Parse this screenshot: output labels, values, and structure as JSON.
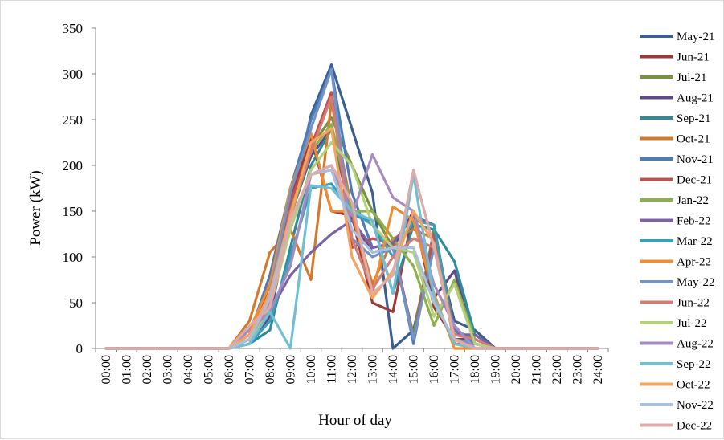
{
  "chart_data": {
    "type": "line",
    "title": "",
    "xlabel": "Hour of day",
    "ylabel": "Power (kW)",
    "ylim": [
      0,
      350
    ],
    "yticks": [
      0,
      50,
      100,
      150,
      200,
      250,
      300,
      350
    ],
    "grid": false,
    "legend_position": "right",
    "categories": [
      "00:00",
      "01:00",
      "02:00",
      "03:00",
      "04:00",
      "05:00",
      "06:00",
      "07:00",
      "08:00",
      "09:00",
      "10:00",
      "11:00",
      "12:00",
      "13:00",
      "14:00",
      "15:00",
      "16:00",
      "17:00",
      "18:00",
      "19:00",
      "20:00",
      "21:00",
      "22:00",
      "23:00",
      "24:00"
    ],
    "series": [
      {
        "name": "May-21",
        "color": "#3b5f91",
        "values": [
          0,
          0,
          0,
          0,
          0,
          0,
          0,
          10,
          45,
          150,
          255,
          310,
          240,
          170,
          0,
          20,
          120,
          30,
          20,
          0,
          0,
          0,
          0,
          0,
          0
        ]
      },
      {
        "name": "Jun-21",
        "color": "#9e3a36",
        "values": [
          0,
          0,
          0,
          0,
          0,
          0,
          0,
          10,
          60,
          165,
          230,
          150,
          145,
          50,
          40,
          150,
          45,
          10,
          10,
          0,
          0,
          0,
          0,
          0,
          0
        ]
      },
      {
        "name": "Jul-21",
        "color": "#769341",
        "values": [
          0,
          0,
          0,
          0,
          0,
          0,
          0,
          5,
          50,
          155,
          220,
          252,
          200,
          150,
          110,
          15,
          130,
          20,
          10,
          0,
          0,
          0,
          0,
          0,
          0
        ]
      },
      {
        "name": "Aug-21",
        "color": "#5f4a83",
        "values": [
          0,
          0,
          0,
          0,
          0,
          0,
          0,
          5,
          35,
          145,
          210,
          240,
          140,
          105,
          110,
          150,
          55,
          85,
          5,
          0,
          0,
          0,
          0,
          0,
          0
        ]
      },
      {
        "name": "Sep-21",
        "color": "#2f8a9e",
        "values": [
          0,
          0,
          0,
          0,
          0,
          0,
          0,
          5,
          20,
          110,
          200,
          240,
          145,
          140,
          60,
          135,
          130,
          95,
          15,
          0,
          0,
          0,
          0,
          0,
          0
        ]
      },
      {
        "name": "Oct-21",
        "color": "#d17a2e",
        "values": [
          0,
          0,
          0,
          0,
          0,
          0,
          0,
          30,
          105,
          130,
          75,
          270,
          150,
          70,
          120,
          130,
          120,
          5,
          5,
          0,
          0,
          0,
          0,
          0,
          0
        ]
      },
      {
        "name": "Nov-21",
        "color": "#4f7bb5",
        "values": [
          0,
          0,
          0,
          0,
          0,
          0,
          0,
          15,
          80,
          175,
          250,
          305,
          170,
          110,
          115,
          5,
          120,
          20,
          5,
          0,
          0,
          0,
          0,
          0,
          0
        ]
      },
      {
        "name": "Dec-21",
        "color": "#c0504d",
        "values": [
          0,
          0,
          0,
          0,
          0,
          0,
          0,
          10,
          70,
          160,
          220,
          280,
          110,
          120,
          115,
          10,
          125,
          10,
          5,
          0,
          0,
          0,
          0,
          0,
          0
        ]
      },
      {
        "name": "Jan-22",
        "color": "#8db04f",
        "values": [
          0,
          0,
          0,
          0,
          0,
          0,
          0,
          5,
          50,
          145,
          215,
          245,
          150,
          150,
          120,
          90,
          25,
          75,
          10,
          0,
          0,
          0,
          0,
          0,
          0
        ]
      },
      {
        "name": "Feb-22",
        "color": "#7c61a3",
        "values": [
          0,
          0,
          0,
          0,
          0,
          0,
          0,
          5,
          40,
          80,
          105,
          125,
          140,
          110,
          115,
          145,
          135,
          15,
          15,
          0,
          0,
          0,
          0,
          0,
          0
        ]
      },
      {
        "name": "Mar-22",
        "color": "#3aa0b8",
        "values": [
          0,
          0,
          0,
          0,
          0,
          0,
          0,
          5,
          30,
          100,
          175,
          180,
          150,
          135,
          100,
          140,
          135,
          10,
          5,
          0,
          0,
          0,
          0,
          0,
          0
        ]
      },
      {
        "name": "Apr-22",
        "color": "#f08c32",
        "values": [
          0,
          0,
          0,
          0,
          0,
          0,
          0,
          20,
          70,
          175,
          235,
          150,
          150,
          60,
          155,
          140,
          60,
          0,
          0,
          0,
          0,
          0,
          0,
          0,
          0
        ]
      },
      {
        "name": "May-22",
        "color": "#7193c8",
        "values": [
          0,
          0,
          0,
          0,
          0,
          0,
          0,
          10,
          60,
          170,
          240,
          305,
          120,
          100,
          110,
          10,
          110,
          10,
          5,
          0,
          0,
          0,
          0,
          0,
          0
        ]
      },
      {
        "name": "Jun-22",
        "color": "#d27c78",
        "values": [
          0,
          0,
          0,
          0,
          0,
          0,
          0,
          5,
          50,
          150,
          215,
          275,
          120,
          65,
          100,
          120,
          110,
          15,
          10,
          0,
          0,
          0,
          0,
          0,
          0
        ]
      },
      {
        "name": "Jul-22",
        "color": "#b5cf7c",
        "values": [
          0,
          0,
          0,
          0,
          0,
          0,
          0,
          5,
          45,
          130,
          195,
          225,
          200,
          135,
          110,
          105,
          35,
          70,
          5,
          0,
          0,
          0,
          0,
          0,
          0
        ]
      },
      {
        "name": "Aug-22",
        "color": "#a48cc2",
        "values": [
          0,
          0,
          0,
          0,
          0,
          0,
          0,
          20,
          40,
          90,
          190,
          200,
          145,
          212,
          165,
          150,
          70,
          25,
          0,
          0,
          0,
          0,
          0,
          0,
          0
        ]
      },
      {
        "name": "Sep-22",
        "color": "#72bed2",
        "values": [
          0,
          0,
          0,
          0,
          0,
          0,
          0,
          5,
          40,
          0,
          178,
          175,
          150,
          140,
          60,
          190,
          55,
          5,
          0,
          0,
          0,
          0,
          0,
          0,
          0
        ]
      },
      {
        "name": "Oct-22",
        "color": "#f7a35c",
        "values": [
          0,
          0,
          0,
          0,
          0,
          0,
          0,
          15,
          60,
          145,
          225,
          240,
          100,
          55,
          85,
          150,
          115,
          10,
          0,
          0,
          0,
          0,
          0,
          0,
          0
        ]
      },
      {
        "name": "Nov-22",
        "color": "#a9bfde",
        "values": [
          0,
          0,
          0,
          0,
          0,
          0,
          0,
          10,
          55,
          140,
          190,
          195,
          130,
          105,
          110,
          110,
          50,
          10,
          0,
          0,
          0,
          0,
          0,
          0,
          0
        ]
      },
      {
        "name": "Dec-22",
        "color": "#dcacaa",
        "values": [
          0,
          0,
          0,
          0,
          0,
          0,
          0,
          25,
          45,
          140,
          190,
          200,
          160,
          60,
          80,
          195,
          110,
          10,
          0,
          0,
          0,
          0,
          0,
          0,
          0
        ]
      }
    ]
  }
}
